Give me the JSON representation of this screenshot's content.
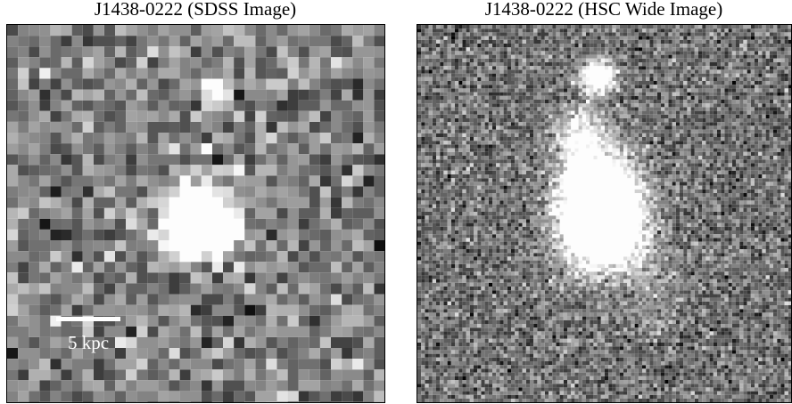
{
  "panels": [
    {
      "title": "J1438-0222 (SDSS Image)",
      "scale_bar_label": "5 kpc"
    },
    {
      "title": "J1438-0222 (HSC Wide Image)"
    }
  ]
}
